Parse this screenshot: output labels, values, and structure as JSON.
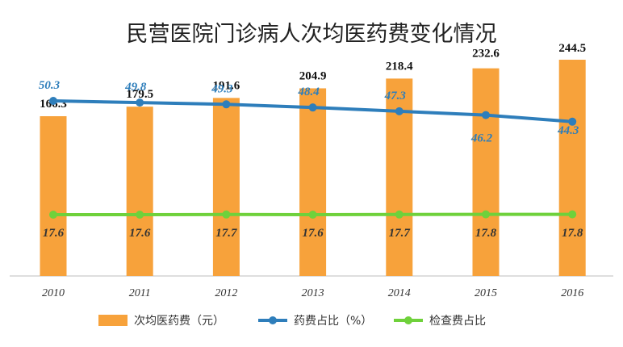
{
  "chart_data": {
    "type": "bar",
    "title": "民营医院门诊病人次均医药费变化情况",
    "categories": [
      "2010",
      "2011",
      "2012",
      "2013",
      "2014",
      "2015",
      "2016"
    ],
    "series": [
      {
        "name": "次均医药费（元）",
        "type": "bar",
        "values": [
          166.3,
          179.5,
          191.6,
          204.9,
          218.4,
          232.6,
          244.5
        ],
        "labels": [
          "166.3",
          "179.5",
          "191.6",
          "204.9",
          "218.4",
          "232.6",
          "244.5"
        ],
        "color": "#f7a23b"
      },
      {
        "name": "药费占比（%）",
        "type": "line",
        "values": [
          50.3,
          49.8,
          49.3,
          48.4,
          47.3,
          46.2,
          44.3
        ],
        "labels": [
          "50.3",
          "49.8",
          "49.3",
          "48.4",
          "47.3",
          "46.2",
          "44.3"
        ],
        "color": "#2e7ebb"
      },
      {
        "name": "检查费占比",
        "type": "line",
        "values": [
          17.6,
          17.6,
          17.7,
          17.6,
          17.7,
          17.8,
          17.8
        ],
        "labels": [
          "17.6",
          "17.6",
          "17.7",
          "17.6",
          "17.7",
          "17.8",
          "17.8"
        ],
        "color": "#6fd13b"
      }
    ],
    "legend_position": "bottom",
    "grid": false
  }
}
